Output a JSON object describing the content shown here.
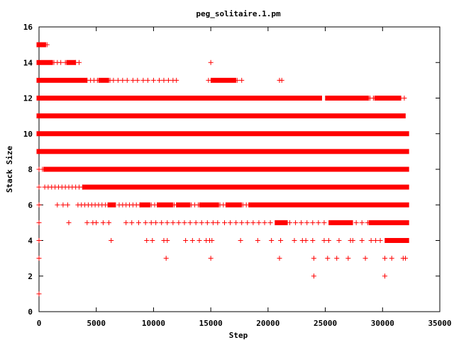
{
  "chart_data": {
    "type": "scatter",
    "title": "peg_solitaire.1.pm",
    "xlabel": "Step",
    "ylabel": "Stack Size",
    "xlim": [
      0,
      35000
    ],
    "ylim": [
      0,
      16
    ],
    "x_ticks": [
      "0",
      "5000",
      "10000",
      "15000",
      "20000",
      "25000",
      "30000",
      "35000"
    ],
    "y_ticks": [
      "0",
      "2",
      "4",
      "6",
      "8",
      "10",
      "12",
      "14",
      "16"
    ],
    "grid": false,
    "legend": "none",
    "marker": "+",
    "color": "#ff0000",
    "series": [
      {
        "y": 1,
        "x_ranges": [],
        "points": [
          0
        ]
      },
      {
        "y": 2,
        "x_ranges": [],
        "points": [
          24000,
          30200
        ]
      },
      {
        "y": 3,
        "x_ranges": [],
        "points": [
          0,
          11100,
          15000,
          21000,
          24000,
          25200,
          26000,
          27000,
          28500,
          30200,
          30800,
          31800,
          32000
        ]
      },
      {
        "y": 4,
        "x_ranges": [
          [
            30400,
            32100
          ]
        ],
        "points": [
          0,
          6300,
          9400,
          9900,
          10900,
          11200,
          12800,
          13400,
          14000,
          14600,
          14900,
          15100,
          17600,
          19100,
          20300,
          21100,
          22300,
          23000,
          23300,
          23900,
          24900,
          25300,
          26200,
          27200,
          27400,
          28200,
          29000,
          29400,
          29800
        ]
      },
      {
        "y": 5,
        "x_ranges": [
          [
            20800,
            21500
          ],
          [
            25500,
            27200
          ],
          [
            29000,
            32100
          ]
        ],
        "points": [
          0,
          2600,
          4200,
          4700,
          5000,
          5600,
          6100,
          7600,
          8100,
          8700,
          9300,
          9800,
          10200,
          10700,
          11200,
          11700,
          12200,
          12700,
          13200,
          13700,
          14200,
          14700,
          15200,
          15600,
          16200,
          16700,
          17200,
          17700,
          18200,
          18700,
          19200,
          19700,
          20200,
          21900,
          22400,
          22900,
          23400,
          23900,
          24400,
          24900,
          27700,
          28200,
          28700
        ]
      },
      {
        "y": 6,
        "x_ranges": [
          [
            6200,
            6500
          ],
          [
            9000,
            9500
          ],
          [
            10500,
            11500
          ],
          [
            12200,
            13000
          ],
          [
            14200,
            15500
          ],
          [
            16500,
            17500
          ],
          [
            18500,
            32100
          ]
        ],
        "points": [
          0,
          1600,
          2100,
          2500,
          3400,
          3700,
          4000,
          4300,
          4600,
          4900,
          5200,
          5500,
          5800,
          7000,
          7300,
          7600,
          7900,
          8200,
          8500,
          8800,
          9800,
          10100,
          11800,
          12000,
          13300,
          13600,
          13900,
          15800,
          16100,
          17800,
          18100
        ]
      },
      {
        "y": 7,
        "x_ranges": [
          [
            4000,
            32100
          ]
        ],
        "points": [
          0,
          500,
          800,
          1100,
          1400,
          1700,
          2000,
          2300,
          2600,
          2900,
          3200,
          3500,
          3800
        ]
      },
      {
        "y": 8,
        "x_ranges": [
          [
            600,
            32100
          ]
        ],
        "points": [
          0,
          300
        ]
      },
      {
        "y": 9,
        "x_ranges": [
          [
            0,
            32100
          ]
        ],
        "points": []
      },
      {
        "y": 10,
        "x_ranges": [
          [
            0,
            32100
          ]
        ],
        "points": []
      },
      {
        "y": 11,
        "x_ranges": [
          [
            0,
            31800
          ]
        ],
        "points": []
      },
      {
        "y": 12,
        "x_ranges": [
          [
            0,
            24500
          ],
          [
            25200,
            28600
          ],
          [
            29500,
            31400
          ]
        ],
        "points": [
          25800,
          26100,
          28900,
          29200,
          30100,
          31600,
          31900
        ]
      },
      {
        "y": 13,
        "x_ranges": [
          [
            0,
            4000
          ],
          [
            5400,
            5900
          ],
          [
            15200,
            17000
          ]
        ],
        "points": [
          4200,
          4500,
          4800,
          5100,
          6200,
          6500,
          6900,
          7300,
          7700,
          8200,
          8600,
          9100,
          9500,
          10000,
          10500,
          10900,
          11300,
          11700,
          12000,
          14800,
          17300,
          17700,
          21000,
          21200
        ]
      },
      {
        "y": 14,
        "x_ranges": [
          [
            0,
            1000
          ],
          [
            2600,
            3000
          ]
        ],
        "points": [
          1300,
          1600,
          1900,
          2300,
          3200,
          3500,
          15000
        ]
      },
      {
        "y": 15,
        "x_ranges": [
          [
            0,
            400
          ]
        ],
        "points": [
          700
        ]
      }
    ]
  }
}
